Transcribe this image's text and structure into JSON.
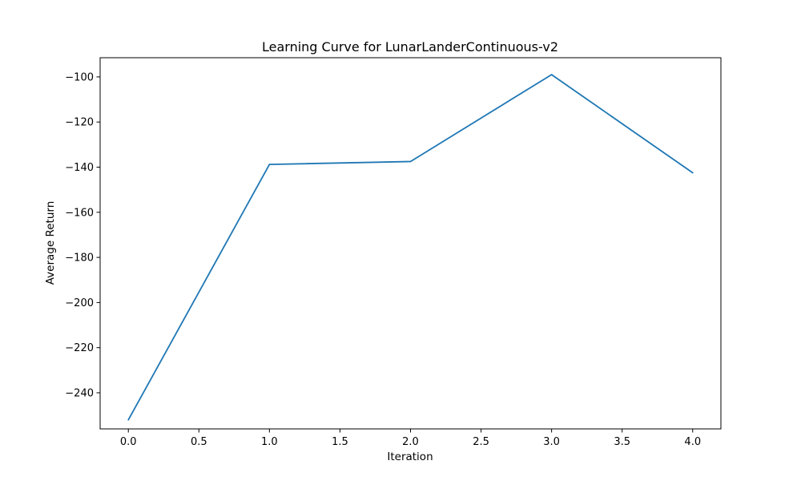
{
  "chart_data": {
    "type": "line",
    "title": "Learning Curve for LunarLanderContinuous-v2",
    "xlabel": "Iteration",
    "ylabel": "Average Return",
    "xlim": [
      -0.2,
      4.2
    ],
    "ylim": [
      -256,
      -91.5
    ],
    "xticks": [
      0.0,
      0.5,
      1.0,
      1.5,
      2.0,
      2.5,
      3.0,
      3.5,
      4.0
    ],
    "xtick_labels": [
      "0.0",
      "0.5",
      "1.0",
      "1.5",
      "2.0",
      "2.5",
      "3.0",
      "3.5",
      "4.0"
    ],
    "yticks": [
      -240,
      -220,
      -200,
      -180,
      -160,
      -140,
      -120,
      -100
    ],
    "ytick_labels": [
      "−240",
      "−220",
      "−200",
      "−180",
      "−160",
      "−140",
      "−120",
      "−100"
    ],
    "grid": false,
    "series": [
      {
        "color": "#1f77b4",
        "x": [
          0,
          1,
          2,
          3,
          4
        ],
        "y": [
          -252.0,
          -138.8,
          -137.5,
          -99.0,
          -142.5
        ]
      }
    ]
  }
}
